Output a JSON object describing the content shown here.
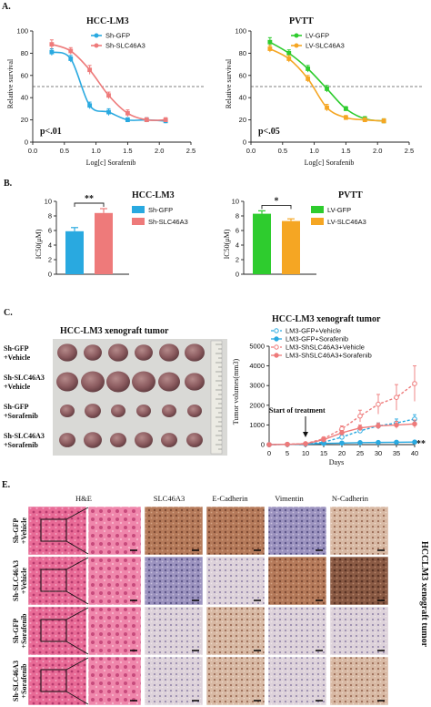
{
  "panels": {
    "A": "A.",
    "B": "B.",
    "C": "C.",
    "E": "E."
  },
  "colors": {
    "blue": "#29a9e0",
    "pink": "#ee7a7a",
    "green": "#2ecc2e",
    "orange": "#f5a623",
    "dash": "#555555"
  },
  "chart_data": [
    {
      "id": "A1",
      "type": "line",
      "title": "HCC-LM3",
      "xlabel": "Log[c] Sorafenib",
      "ylabel": "Relative survival",
      "xlim": [
        0.0,
        2.5
      ],
      "ylim": [
        0,
        100
      ],
      "xticks": [
        "0.0",
        "0.5",
        "1.0",
        "1.5",
        "2.0",
        "2.5"
      ],
      "yticks": [
        "0",
        "20",
        "40",
        "60",
        "80",
        "100"
      ],
      "reference_line": 50,
      "annotation": "p<.01",
      "legend_position": "top-right",
      "series": [
        {
          "name": "Sh-GFP",
          "color": "#29a9e0",
          "x": [
            0.3,
            0.6,
            0.9,
            1.2,
            1.5,
            1.8,
            2.1
          ],
          "y": [
            81,
            75,
            33,
            27,
            20,
            20,
            19
          ],
          "err": [
            3,
            3,
            3,
            3,
            2,
            2,
            2
          ]
        },
        {
          "name": "Sh-SLC46A3",
          "color": "#ee7a7a",
          "x": [
            0.3,
            0.6,
            0.9,
            1.2,
            1.5,
            1.8,
            2.1
          ],
          "y": [
            88,
            82,
            65,
            42,
            26,
            20,
            20
          ],
          "err": [
            4,
            3,
            4,
            3,
            3,
            2,
            2
          ]
        }
      ]
    },
    {
      "id": "A2",
      "type": "line",
      "title": "PVTT",
      "xlabel": "Log[c] Sorafenib",
      "ylabel": "Relative survival",
      "xlim": [
        0.0,
        2.5
      ],
      "ylim": [
        0,
        100
      ],
      "xticks": [
        "0.0",
        "0.5",
        "1.0",
        "1.5",
        "2.0",
        "2.5"
      ],
      "yticks": [
        "0",
        "20",
        "40",
        "60",
        "80",
        "100"
      ],
      "reference_line": 50,
      "annotation": "p<.05",
      "legend_position": "top-right",
      "series": [
        {
          "name": "LV-GFP",
          "color": "#2ecc2e",
          "x": [
            0.3,
            0.6,
            0.9,
            1.2,
            1.5,
            1.8,
            2.1
          ],
          "y": [
            90,
            80,
            66,
            48,
            30,
            21,
            19
          ],
          "err": [
            4,
            3,
            3,
            3,
            2,
            2,
            2
          ]
        },
        {
          "name": "LV-SLC46A3",
          "color": "#f5a623",
          "x": [
            0.3,
            0.6,
            0.9,
            1.2,
            1.5,
            1.8,
            2.1
          ],
          "y": [
            84,
            75,
            57,
            31,
            22,
            20,
            19
          ],
          "err": [
            3,
            3,
            3,
            3,
            2,
            2,
            2
          ]
        }
      ]
    },
    {
      "id": "B1",
      "type": "bar",
      "title": "HCC-LM3",
      "ylabel": "IC50(μM)",
      "ylim": [
        0,
        10
      ],
      "yticks": [
        "0",
        "2",
        "4",
        "6",
        "8",
        "10"
      ],
      "categories": [
        "Sh-GFP",
        "Sh-SLC46A3"
      ],
      "values": [
        5.9,
        8.4
      ],
      "errors": [
        0.5,
        0.6
      ],
      "colors": [
        "#29a9e0",
        "#ee7a7a"
      ],
      "significance": "**",
      "legend_position": "right"
    },
    {
      "id": "B2",
      "type": "bar",
      "title": "PVTT",
      "ylabel": "IC50(μM)",
      "ylim": [
        0,
        10
      ],
      "yticks": [
        "0",
        "2",
        "4",
        "6",
        "8",
        "10"
      ],
      "categories": [
        "LV-GFP",
        "LV-SLC46A3"
      ],
      "values": [
        8.3,
        7.3
      ],
      "errors": [
        0.4,
        0.3
      ],
      "colors": [
        "#2ecc2e",
        "#f5a623"
      ],
      "significance": "*",
      "legend_position": "right"
    },
    {
      "id": "C1",
      "type": "line",
      "title": "HCC-LM3 xenograft tumor",
      "xlabel": "Days",
      "ylabel": "Tumor volumes(mm3)",
      "xlim": [
        0,
        40
      ],
      "ylim": [
        0,
        5000
      ],
      "xticks": [
        "0",
        "5",
        "10",
        "15",
        "20",
        "25",
        "30",
        "35",
        "40"
      ],
      "yticks": [
        "0",
        "1000",
        "2000",
        "3000",
        "4000",
        "5000"
      ],
      "annotation": "Start of treatment",
      "significance": "**",
      "legend_position": "top-left",
      "series": [
        {
          "name": "LM3-GFP+Vehicle",
          "color": "#29a9e0",
          "dashed": true,
          "x": [
            0,
            5,
            10,
            15,
            20,
            25,
            30,
            35,
            40
          ],
          "y": [
            0,
            10,
            30,
            120,
            380,
            700,
            950,
            1100,
            1300
          ],
          "err": [
            0,
            5,
            10,
            40,
            80,
            120,
            150,
            200,
            220
          ]
        },
        {
          "name": "LM3-GFP+Sorafenib",
          "color": "#29a9e0",
          "dashed": false,
          "x": [
            0,
            5,
            10,
            15,
            20,
            25,
            30,
            35,
            40
          ],
          "y": [
            0,
            10,
            25,
            60,
            80,
            100,
            110,
            120,
            130
          ],
          "err": [
            0,
            5,
            8,
            15,
            20,
            25,
            25,
            30,
            30
          ]
        },
        {
          "name": "LM3-ShSLC46A3+Vehicle",
          "color": "#ee7a7a",
          "dashed": true,
          "x": [
            0,
            5,
            10,
            15,
            20,
            25,
            30,
            35,
            40
          ],
          "y": [
            0,
            15,
            50,
            300,
            800,
            1450,
            2050,
            2400,
            3100
          ],
          "err": [
            0,
            10,
            20,
            80,
            150,
            300,
            500,
            650,
            900
          ]
        },
        {
          "name": "LM3-ShSLC46A3+Sorafenib",
          "color": "#ee7a7a",
          "dashed": false,
          "x": [
            0,
            5,
            10,
            15,
            20,
            25,
            30,
            35,
            40
          ],
          "y": [
            0,
            15,
            40,
            250,
            600,
            850,
            950,
            1000,
            1050
          ],
          "err": [
            0,
            8,
            15,
            60,
            120,
            150,
            150,
            180,
            200
          ]
        }
      ]
    }
  ],
  "xenograft": {
    "title": "HCC-LM3 xenograft tumor",
    "rows": [
      {
        "line1": "Sh-GFP",
        "line2": "+Vehicle"
      },
      {
        "line1": "Sh-SLC46A3",
        "line2": "+Vehicle"
      },
      {
        "line1": "Sh-GFP",
        "line2": "+Sorafenib"
      },
      {
        "line1": "Sh-SLC46A3",
        "line2": "+Sorafenib"
      }
    ]
  },
  "ihc": {
    "headers": [
      "H&E",
      "SLC46A3",
      "E-Cadherin",
      "Vimentin",
      "N-Cadherin"
    ],
    "side_label": "HCCLM3 xenograft tumor",
    "rows": [
      {
        "line1": "Sh-GFP",
        "line2": "+Vehicle"
      },
      {
        "line1": "Sh-SLC46A3",
        "line2": "+Vehicle"
      },
      {
        "line1": "Sh-GFP",
        "line2": "+Sorafenib"
      },
      {
        "line1": "Sh-SLC46A3",
        "line2": "+Sorafenib"
      }
    ]
  }
}
